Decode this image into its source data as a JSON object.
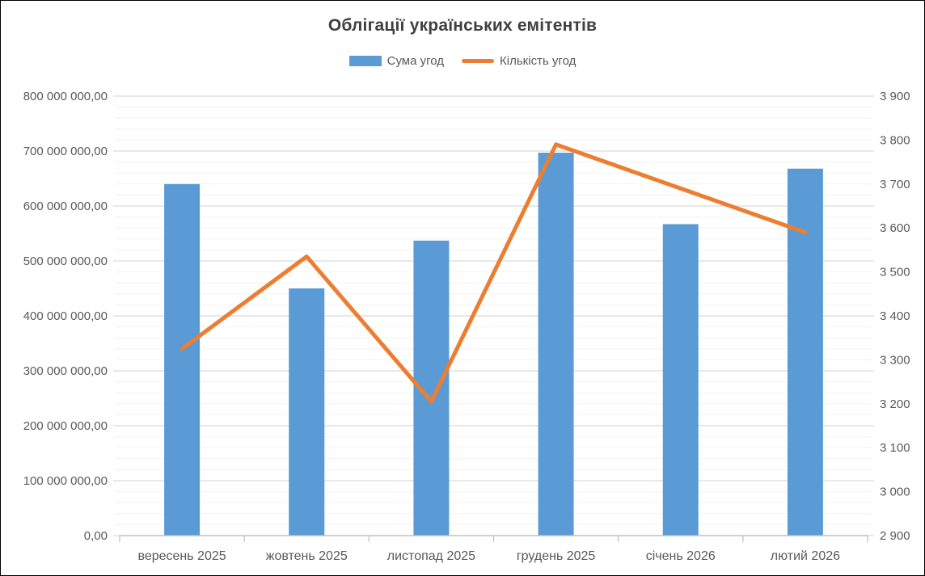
{
  "title": "Облігації українських емітентів",
  "legend": [
    {
      "label": "Сума угод",
      "marker": "bar-swatch",
      "color": "#5B9BD5"
    },
    {
      "label": "Кількість угод",
      "marker": "line-swatch",
      "color": "#ED7D31"
    }
  ],
  "colors": {
    "bar": "#5B9BD5",
    "line": "#ED7D31",
    "title_text": "#404040",
    "axis_text": "#595959",
    "major_gridline": "#D9D9D9",
    "minor_gridline": "#F2F2F2",
    "axis_line": "#BFBFBF"
  },
  "chart_data": {
    "type": "combo",
    "title": "Облігації українських емітентів",
    "categories": [
      "вересень 2025",
      "жовтень 2025",
      "листопад 2025",
      "грудень 2025",
      "січень 2026",
      "лютий 2026"
    ],
    "series": [
      {
        "name": "Сума угод",
        "type": "bar",
        "axis": "left",
        "color": "#5B9BD5",
        "values": [
          640000000,
          450000000,
          537000000,
          697000000,
          567000000,
          668000000
        ]
      },
      {
        "name": "Кількість угод",
        "type": "line",
        "axis": "right",
        "color": "#ED7D31",
        "values": [
          3325,
          3535,
          3205,
          3790,
          3690,
          3590
        ]
      }
    ],
    "left_axis": {
      "min": 0,
      "max": 800000000,
      "step": 100000000,
      "tick_labels": [
        "0,00",
        "100 000 000,00",
        "200 000 000,00",
        "300 000 000,00",
        "400 000 000,00",
        "500 000 000,00",
        "600 000 000,00",
        "700 000 000,00",
        "800 000 000,00"
      ]
    },
    "right_axis": {
      "min": 2900,
      "max": 3900,
      "step": 100,
      "tick_labels": [
        "2 900",
        "3 000",
        "3 100",
        "3 200",
        "3 300",
        "3 400",
        "3 500",
        "3 600",
        "3 700",
        "3 800",
        "3 900"
      ]
    },
    "grid": {
      "major": true,
      "minor": true,
      "minor_per_major": 5
    },
    "legend_position": "top"
  }
}
